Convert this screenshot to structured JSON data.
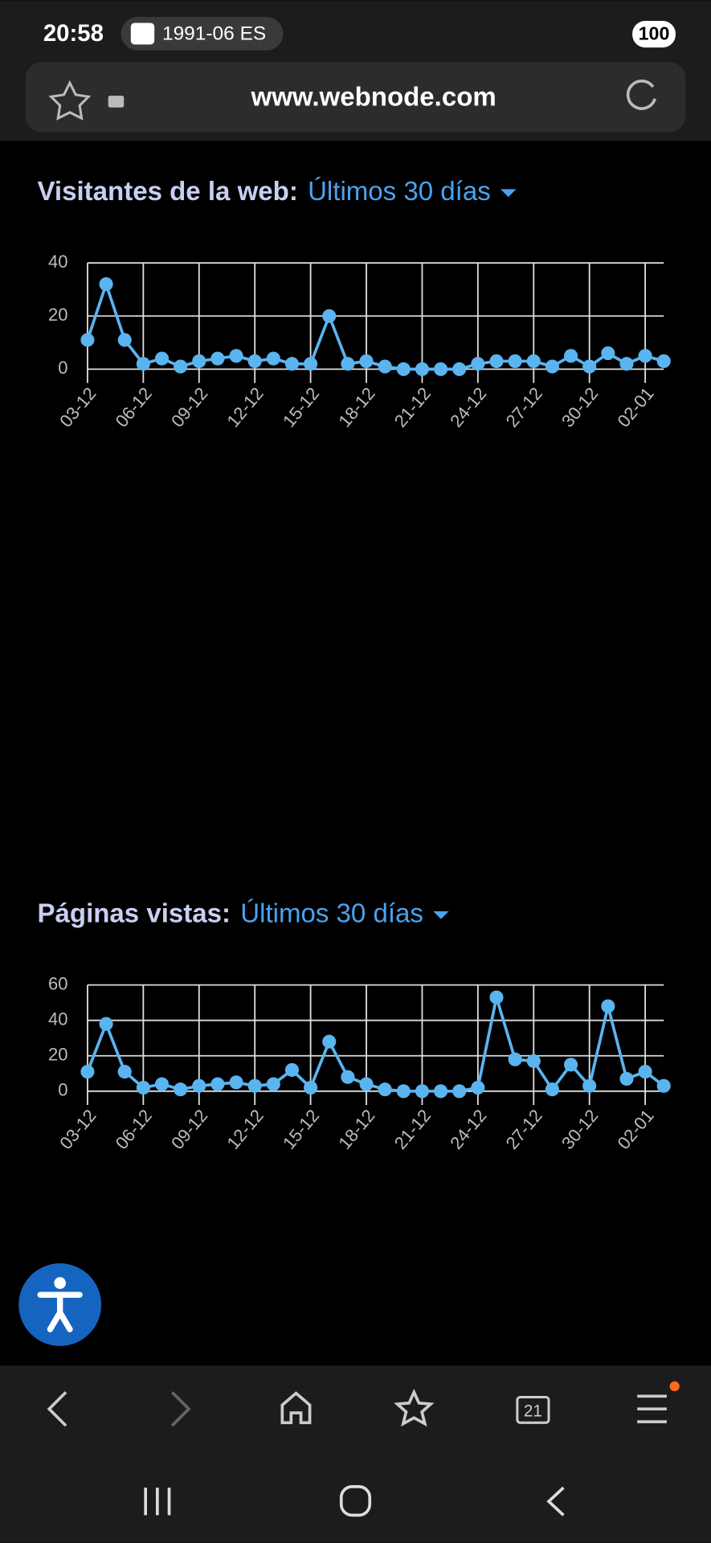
{
  "status_bar": {
    "time": "20:58",
    "notification": "1991-06 ES",
    "battery": "100"
  },
  "browser": {
    "url": "www.webnode.com",
    "tab_count": "21"
  },
  "chart_data": [
    {
      "type": "line",
      "title": "Visitantes de la web:",
      "subtitle": "Últimos 30 días",
      "categories": [
        "03-12",
        null,
        null,
        "06-12",
        null,
        null,
        "09-12",
        null,
        null,
        "12-12",
        null,
        null,
        "15-12",
        null,
        null,
        "18-12",
        null,
        null,
        "21-12",
        null,
        null,
        "24-12",
        null,
        null,
        "27-12",
        null,
        null,
        "30-12",
        null,
        null,
        "02-01",
        null
      ],
      "values": [
        11,
        32,
        11,
        2,
        4,
        1,
        3,
        4,
        5,
        3,
        4,
        2,
        2,
        20,
        2,
        3,
        1,
        0,
        0,
        0,
        0,
        2,
        3,
        3,
        3,
        1,
        5,
        1,
        6,
        2,
        5,
        3
      ],
      "color": "#5ab4f0",
      "ylim": [
        0,
        40
      ],
      "yticks": [
        0,
        20,
        40
      ],
      "grid": true
    },
    {
      "type": "line",
      "title": "Páginas vistas:",
      "subtitle": "Últimos 30 días",
      "categories": [
        "03-12",
        null,
        null,
        "06-12",
        null,
        null,
        "09-12",
        null,
        null,
        "12-12",
        null,
        null,
        "15-12",
        null,
        null,
        "18-12",
        null,
        null,
        "21-12",
        null,
        null,
        "24-12",
        null,
        null,
        "27-12",
        null,
        null,
        "30-12",
        null,
        null,
        "02-01",
        null
      ],
      "values": [
        11,
        38,
        11,
        2,
        4,
        1,
        3,
        4,
        5,
        3,
        4,
        12,
        2,
        28,
        8,
        4,
        1,
        0,
        0,
        0,
        0,
        2,
        53,
        18,
        17,
        1,
        15,
        3,
        48,
        7,
        11,
        3
      ],
      "color": "#5ab4f0",
      "ylim": [
        0,
        60
      ],
      "yticks": [
        0,
        20,
        40,
        60
      ],
      "grid": true
    }
  ]
}
